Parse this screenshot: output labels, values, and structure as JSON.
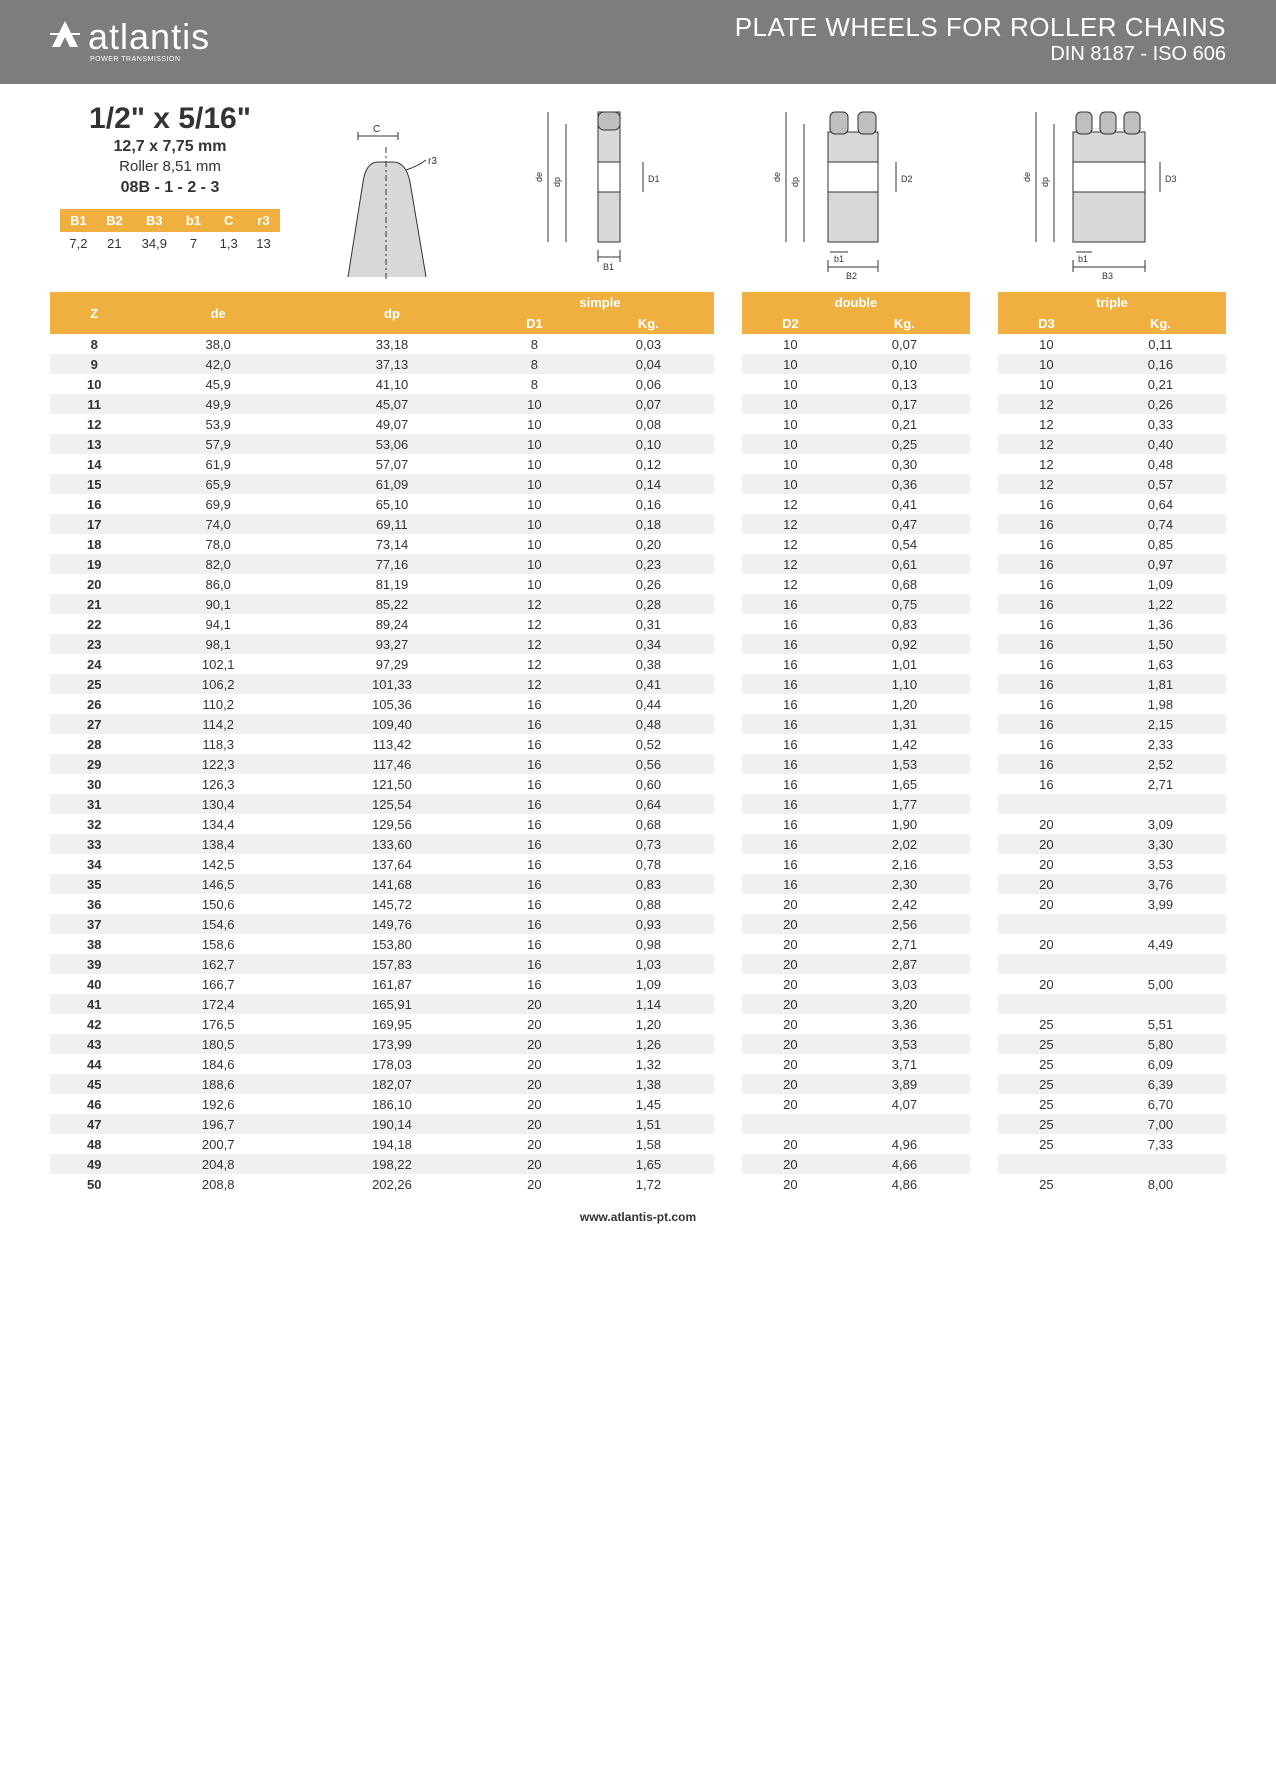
{
  "header": {
    "logo_text": "atlantis",
    "logo_sub": "POWER TRANSMISSION",
    "title": "PLATE WHEELS FOR ROLLER CHAINS",
    "subtitle": "DIN 8187 - ISO 606"
  },
  "spec": {
    "title": "1/2\" x 5/16\"",
    "mm": "12,7 x 7,75 mm",
    "roller": "Roller 8,51 mm",
    "code": "08B - 1 - 2 - 3"
  },
  "small_table": {
    "headers": [
      "B1",
      "B2",
      "B3",
      "b1",
      "C",
      "r3"
    ],
    "row": [
      "7,2",
      "21",
      "34,9",
      "7",
      "1,3",
      "13"
    ]
  },
  "diagrams": {
    "labels": [
      "C",
      "r3",
      "de",
      "dp",
      "D1",
      "B1",
      "de",
      "dp",
      "D2",
      "b1",
      "B2",
      "de",
      "dp",
      "D3",
      "b1",
      "B3"
    ]
  },
  "main": {
    "group_headers": [
      "simple",
      "double",
      "triple"
    ],
    "col_headers": [
      "Z",
      "de",
      "dp",
      "D1",
      "Kg.",
      "D2",
      "Kg.",
      "D3",
      "Kg."
    ],
    "rows": [
      [
        "8",
        "38,0",
        "33,18",
        "8",
        "0,03",
        "10",
        "0,07",
        "10",
        "0,11"
      ],
      [
        "9",
        "42,0",
        "37,13",
        "8",
        "0,04",
        "10",
        "0,10",
        "10",
        "0,16"
      ],
      [
        "10",
        "45,9",
        "41,10",
        "8",
        "0,06",
        "10",
        "0,13",
        "10",
        "0,21"
      ],
      [
        "11",
        "49,9",
        "45,07",
        "10",
        "0,07",
        "10",
        "0,17",
        "12",
        "0,26"
      ],
      [
        "12",
        "53,9",
        "49,07",
        "10",
        "0,08",
        "10",
        "0,21",
        "12",
        "0,33"
      ],
      [
        "13",
        "57,9",
        "53,06",
        "10",
        "0,10",
        "10",
        "0,25",
        "12",
        "0,40"
      ],
      [
        "14",
        "61,9",
        "57,07",
        "10",
        "0,12",
        "10",
        "0,30",
        "12",
        "0,48"
      ],
      [
        "15",
        "65,9",
        "61,09",
        "10",
        "0,14",
        "10",
        "0,36",
        "12",
        "0,57"
      ],
      [
        "16",
        "69,9",
        "65,10",
        "10",
        "0,16",
        "12",
        "0,41",
        "16",
        "0,64"
      ],
      [
        "17",
        "74,0",
        "69,11",
        "10",
        "0,18",
        "12",
        "0,47",
        "16",
        "0,74"
      ],
      [
        "18",
        "78,0",
        "73,14",
        "10",
        "0,20",
        "12",
        "0,54",
        "16",
        "0,85"
      ],
      [
        "19",
        "82,0",
        "77,16",
        "10",
        "0,23",
        "12",
        "0,61",
        "16",
        "0,97"
      ],
      [
        "20",
        "86,0",
        "81,19",
        "10",
        "0,26",
        "12",
        "0,68",
        "16",
        "1,09"
      ],
      [
        "21",
        "90,1",
        "85,22",
        "12",
        "0,28",
        "16",
        "0,75",
        "16",
        "1,22"
      ],
      [
        "22",
        "94,1",
        "89,24",
        "12",
        "0,31",
        "16",
        "0,83",
        "16",
        "1,36"
      ],
      [
        "23",
        "98,1",
        "93,27",
        "12",
        "0,34",
        "16",
        "0,92",
        "16",
        "1,50"
      ],
      [
        "24",
        "102,1",
        "97,29",
        "12",
        "0,38",
        "16",
        "1,01",
        "16",
        "1,63"
      ],
      [
        "25",
        "106,2",
        "101,33",
        "12",
        "0,41",
        "16",
        "1,10",
        "16",
        "1,81"
      ],
      [
        "26",
        "110,2",
        "105,36",
        "16",
        "0,44",
        "16",
        "1,20",
        "16",
        "1,98"
      ],
      [
        "27",
        "114,2",
        "109,40",
        "16",
        "0,48",
        "16",
        "1,31",
        "16",
        "2,15"
      ],
      [
        "28",
        "118,3",
        "113,42",
        "16",
        "0,52",
        "16",
        "1,42",
        "16",
        "2,33"
      ],
      [
        "29",
        "122,3",
        "117,46",
        "16",
        "0,56",
        "16",
        "1,53",
        "16",
        "2,52"
      ],
      [
        "30",
        "126,3",
        "121,50",
        "16",
        "0,60",
        "16",
        "1,65",
        "16",
        "2,71"
      ],
      [
        "31",
        "130,4",
        "125,54",
        "16",
        "0,64",
        "16",
        "1,77",
        "",
        ""
      ],
      [
        "32",
        "134,4",
        "129,56",
        "16",
        "0,68",
        "16",
        "1,90",
        "20",
        "3,09"
      ],
      [
        "33",
        "138,4",
        "133,60",
        "16",
        "0,73",
        "16",
        "2,02",
        "20",
        "3,30"
      ],
      [
        "34",
        "142,5",
        "137,64",
        "16",
        "0,78",
        "16",
        "2,16",
        "20",
        "3,53"
      ],
      [
        "35",
        "146,5",
        "141,68",
        "16",
        "0,83",
        "16",
        "2,30",
        "20",
        "3,76"
      ],
      [
        "36",
        "150,6",
        "145,72",
        "16",
        "0,88",
        "20",
        "2,42",
        "20",
        "3,99"
      ],
      [
        "37",
        "154,6",
        "149,76",
        "16",
        "0,93",
        "20",
        "2,56",
        "",
        ""
      ],
      [
        "38",
        "158,6",
        "153,80",
        "16",
        "0,98",
        "20",
        "2,71",
        "20",
        "4,49"
      ],
      [
        "39",
        "162,7",
        "157,83",
        "16",
        "1,03",
        "20",
        "2,87",
        "",
        ""
      ],
      [
        "40",
        "166,7",
        "161,87",
        "16",
        "1,09",
        "20",
        "3,03",
        "20",
        "5,00"
      ],
      [
        "41",
        "172,4",
        "165,91",
        "20",
        "1,14",
        "20",
        "3,20",
        "",
        ""
      ],
      [
        "42",
        "176,5",
        "169,95",
        "20",
        "1,20",
        "20",
        "3,36",
        "25",
        "5,51"
      ],
      [
        "43",
        "180,5",
        "173,99",
        "20",
        "1,26",
        "20",
        "3,53",
        "25",
        "5,80"
      ],
      [
        "44",
        "184,6",
        "178,03",
        "20",
        "1,32",
        "20",
        "3,71",
        "25",
        "6,09"
      ],
      [
        "45",
        "188,6",
        "182,07",
        "20",
        "1,38",
        "20",
        "3,89",
        "25",
        "6,39"
      ],
      [
        "46",
        "192,6",
        "186,10",
        "20",
        "1,45",
        "20",
        "4,07",
        "25",
        "6,70"
      ],
      [
        "47",
        "196,7",
        "190,14",
        "20",
        "1,51",
        "",
        "",
        "25",
        "7,00"
      ],
      [
        "48",
        "200,7",
        "194,18",
        "20",
        "1,58",
        "20",
        "4,96",
        "25",
        "7,33"
      ],
      [
        "49",
        "204,8",
        "198,22",
        "20",
        "1,65",
        "20",
        "4,66",
        "",
        ""
      ],
      [
        "50",
        "208,8",
        "202,26",
        "20",
        "1,72",
        "20",
        "4,86",
        "25",
        "8,00"
      ]
    ]
  },
  "footer": {
    "url": "www.atlantis-pt.com"
  },
  "colors": {
    "header_bg": "#7d7d7d",
    "orange": "#f0b040",
    "row_alt": "#f0f0f0"
  }
}
